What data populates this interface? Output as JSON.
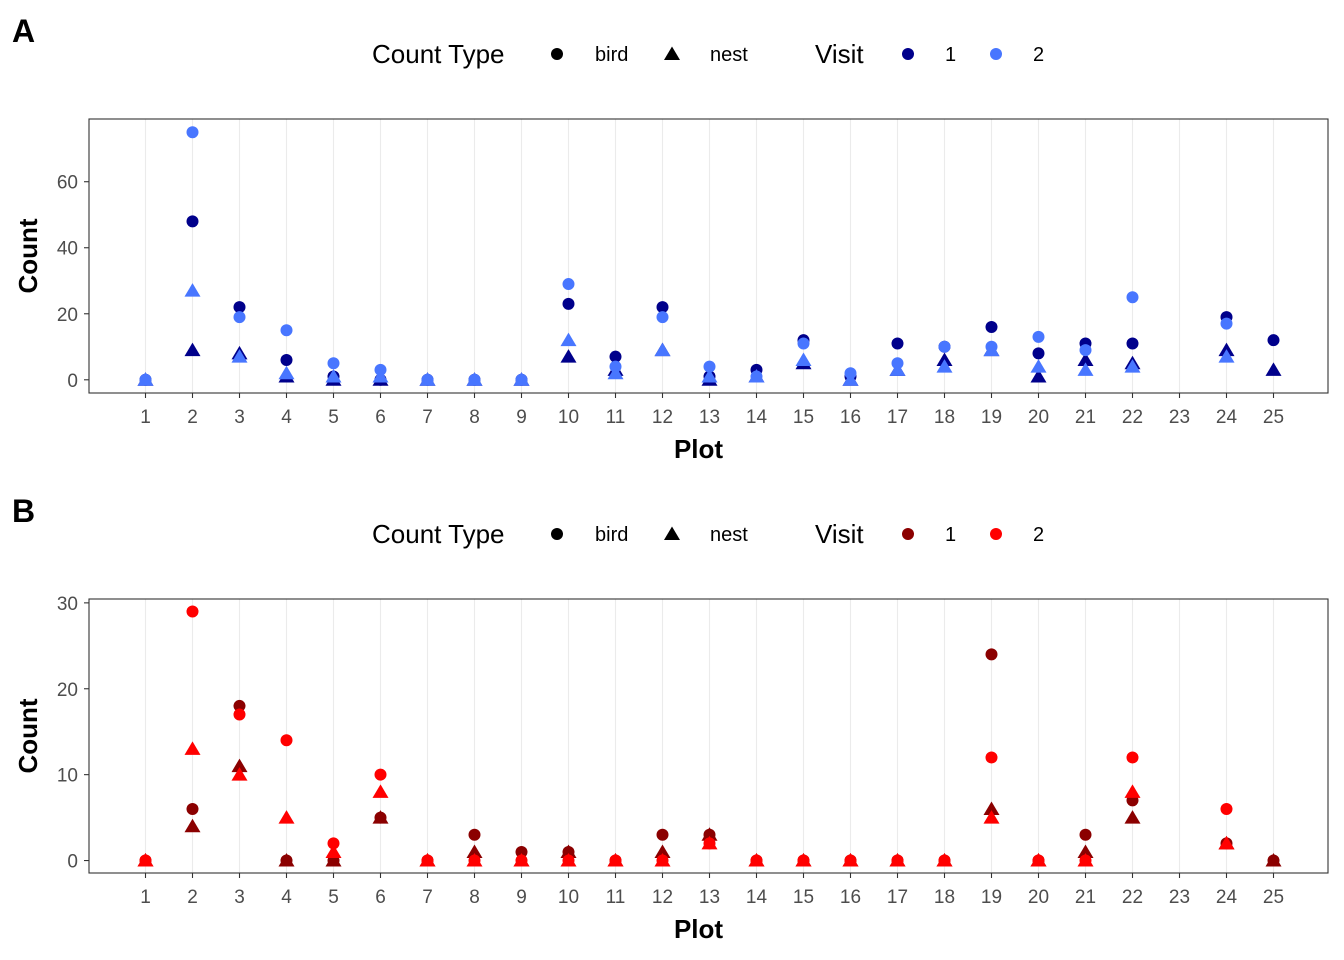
{
  "chart_data": [
    {
      "type": "scatter",
      "panel_tag": "A",
      "xlabel": "Plot",
      "ylabel": "Count",
      "categories": [
        "1",
        "2",
        "3",
        "4",
        "5",
        "6",
        "7",
        "8",
        "9",
        "10",
        "11",
        "12",
        "13",
        "14",
        "15",
        "16",
        "17",
        "18",
        "19",
        "20",
        "21",
        "22",
        "23",
        "24",
        "25"
      ],
      "ylim": [
        -4,
        79
      ],
      "yticks": [
        0,
        20,
        40,
        60
      ],
      "grid": "vertical-major",
      "legend_position": "top",
      "legend": {
        "shape_title": "Count Type",
        "shape_entries": [
          "bird",
          "nest"
        ],
        "color_title": "Visit",
        "color_entries": [
          "1",
          "2"
        ],
        "colors": [
          "#00008B",
          "#4876FF"
        ]
      },
      "series": [
        {
          "visit": "1",
          "type": "bird",
          "color": "#00008B",
          "x": [
            "1",
            "2",
            "3",
            "4",
            "5",
            "6",
            "7",
            "8",
            "9",
            "10",
            "11",
            "12",
            "13",
            "14",
            "15",
            "16",
            "17",
            "18",
            "19",
            "20",
            "21",
            "22",
            "24",
            "25"
          ],
          "values": [
            0,
            48,
            22,
            6,
            1,
            0,
            0,
            0,
            0,
            23,
            7,
            22,
            1,
            3,
            12,
            1,
            11,
            10,
            16,
            8,
            11,
            11,
            19,
            12
          ]
        },
        {
          "visit": "1",
          "type": "nest",
          "color": "#00008B",
          "x": [
            "1",
            "2",
            "3",
            "4",
            "5",
            "6",
            "7",
            "8",
            "9",
            "10",
            "11",
            "12",
            "13",
            "14",
            "15",
            "16",
            "17",
            "18",
            "19",
            "20",
            "21",
            "22",
            "24",
            "25"
          ],
          "values": [
            0,
            9,
            8,
            1,
            0,
            0,
            0,
            0,
            0,
            7,
            3,
            9,
            0,
            1,
            5,
            0,
            3,
            6,
            9,
            1,
            6,
            5,
            9,
            3
          ]
        },
        {
          "visit": "2",
          "type": "bird",
          "color": "#4876FF",
          "x": [
            "1",
            "2",
            "3",
            "4",
            "5",
            "6",
            "7",
            "8",
            "9",
            "10",
            "11",
            "12",
            "13",
            "14",
            "15",
            "16",
            "17",
            "18",
            "19",
            "20",
            "21",
            "22",
            "24"
          ],
          "values": [
            0,
            75,
            19,
            15,
            5,
            3,
            0,
            0,
            0,
            29,
            4,
            19,
            4,
            1,
            11,
            2,
            5,
            10,
            10,
            13,
            9,
            25,
            17
          ]
        },
        {
          "visit": "2",
          "type": "nest",
          "color": "#4876FF",
          "x": [
            "1",
            "2",
            "3",
            "4",
            "5",
            "6",
            "7",
            "8",
            "9",
            "10",
            "11",
            "12",
            "13",
            "14",
            "15",
            "16",
            "17",
            "18",
            "19",
            "20",
            "21",
            "22",
            "24"
          ],
          "values": [
            0,
            27,
            7,
            2,
            1,
            1,
            0,
            0,
            0,
            12,
            2,
            9,
            1,
            1,
            6,
            0,
            3,
            4,
            9,
            4,
            3,
            4,
            7
          ]
        }
      ]
    },
    {
      "type": "scatter",
      "panel_tag": "B",
      "xlabel": "Plot",
      "ylabel": "Count",
      "categories": [
        "1",
        "2",
        "3",
        "4",
        "5",
        "6",
        "7",
        "8",
        "9",
        "10",
        "11",
        "12",
        "13",
        "14",
        "15",
        "16",
        "17",
        "18",
        "19",
        "20",
        "21",
        "22",
        "23",
        "24",
        "25"
      ],
      "ylim": [
        -1.45,
        30.45
      ],
      "yticks": [
        0,
        10,
        20,
        30
      ],
      "grid": "vertical-major",
      "legend_position": "top",
      "legend": {
        "shape_title": "Count Type",
        "shape_entries": [
          "bird",
          "nest"
        ],
        "color_title": "Visit",
        "color_entries": [
          "1",
          "2"
        ],
        "colors": [
          "#8B0000",
          "#FF0000"
        ]
      },
      "series": [
        {
          "visit": "1",
          "type": "bird",
          "color": "#8B0000",
          "x": [
            "1",
            "2",
            "3",
            "4",
            "5",
            "6",
            "7",
            "8",
            "9",
            "10",
            "11",
            "12",
            "13",
            "14",
            "15",
            "16",
            "17",
            "18",
            "19",
            "20",
            "21",
            "22",
            "24",
            "25"
          ],
          "values": [
            0,
            6,
            18,
            0,
            0,
            5,
            0,
            3,
            1,
            1,
            0,
            3,
            3,
            0,
            0,
            0,
            0,
            0,
            24,
            0,
            3,
            7,
            2,
            0
          ]
        },
        {
          "visit": "1",
          "type": "nest",
          "color": "#8B0000",
          "x": [
            "1",
            "2",
            "3",
            "4",
            "5",
            "6",
            "7",
            "8",
            "9",
            "10",
            "11",
            "12",
            "13",
            "14",
            "15",
            "16",
            "17",
            "18",
            "19",
            "20",
            "21",
            "22",
            "24",
            "25"
          ],
          "values": [
            0,
            4,
            11,
            0,
            0,
            5,
            0,
            1,
            0,
            1,
            0,
            1,
            3,
            0,
            0,
            0,
            0,
            0,
            6,
            0,
            1,
            5,
            2,
            0
          ]
        },
        {
          "visit": "2",
          "type": "bird",
          "color": "#FF0000",
          "x": [
            "1",
            "2",
            "3",
            "4",
            "5",
            "6",
            "7",
            "8",
            "9",
            "10",
            "11",
            "12",
            "13",
            "14",
            "15",
            "16",
            "17",
            "18",
            "19",
            "20",
            "21",
            "22",
            "24"
          ],
          "values": [
            0,
            29,
            17,
            14,
            2,
            10,
            0,
            0,
            0,
            0,
            0,
            0,
            2,
            0,
            0,
            0,
            0,
            0,
            12,
            0,
            0,
            12,
            6
          ]
        },
        {
          "visit": "2",
          "type": "nest",
          "color": "#FF0000",
          "x": [
            "1",
            "2",
            "3",
            "4",
            "5",
            "6",
            "7",
            "8",
            "9",
            "10",
            "11",
            "12",
            "13",
            "14",
            "15",
            "16",
            "17",
            "18",
            "19",
            "20",
            "21",
            "22",
            "24"
          ],
          "values": [
            0,
            13,
            10,
            5,
            1,
            8,
            0,
            0,
            0,
            0,
            0,
            0,
            2,
            0,
            0,
            0,
            0,
            0,
            5,
            0,
            0,
            8,
            2
          ]
        }
      ]
    }
  ]
}
